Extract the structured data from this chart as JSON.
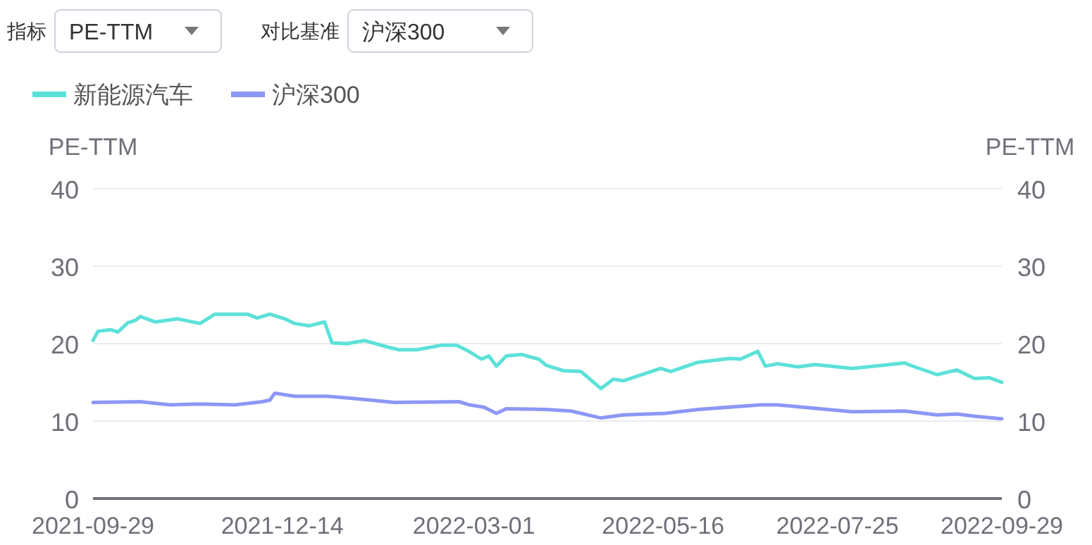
{
  "chart_data": {
    "type": "line",
    "ylabel": "PE-TTM",
    "y2label": "PE-TTM",
    "annotations": [
      "指标",
      "PE-TTM",
      "对比基准",
      "沪深300"
    ],
    "xlim": [
      "2021-09-29",
      "2022-09-29"
    ],
    "xticks": [
      "2021-09-29",
      "2021-12-14",
      "2022-03-01",
      "2022-05-16",
      "2022-07-25",
      "2022-09-29"
    ],
    "ylim": [
      0,
      40
    ],
    "yticks": [
      0,
      10,
      20,
      30,
      40
    ],
    "y2lim": [
      0,
      40
    ],
    "y2ticks": [
      0,
      10,
      20,
      30,
      40
    ],
    "grid": "y",
    "legend": "top left",
    "series": [
      {
        "name": "新能源汽车",
        "color": "#5ce1d9",
        "x": [
          "2021-09-29",
          "2021-10-01",
          "2021-10-06",
          "2021-10-09",
          "2021-10-13",
          "2021-10-16",
          "2021-10-18",
          "2021-10-24",
          "2021-11-02",
          "2021-11-11",
          "2021-11-17",
          "2021-11-30",
          "2021-12-04",
          "2021-12-09",
          "2021-12-15",
          "2021-12-19",
          "2021-12-25",
          "2021-12-31",
          "2022-01-03",
          "2022-01-09",
          "2022-01-16",
          "2022-01-26",
          "2022-01-30",
          "2022-02-06",
          "2022-02-16",
          "2022-02-22",
          "2022-02-27",
          "2022-03-04",
          "2022-03-07",
          "2022-03-10",
          "2022-03-14",
          "2022-03-20",
          "2022-03-27",
          "2022-03-30",
          "2022-04-06",
          "2022-04-13",
          "2022-04-21",
          "2022-04-26",
          "2022-04-30",
          "2022-05-15",
          "2022-05-19",
          "2022-05-30",
          "2022-06-12",
          "2022-06-16",
          "2022-06-23",
          "2022-06-26",
          "2022-07-01",
          "2022-07-09",
          "2022-07-16",
          "2022-07-31",
          "2022-08-21",
          "2022-08-25",
          "2022-09-03",
          "2022-09-11",
          "2022-09-18",
          "2022-09-24",
          "2022-09-29"
        ],
        "values": [
          20.4,
          21.6,
          21.8,
          21.5,
          22.7,
          23.0,
          23.5,
          22.8,
          23.2,
          22.6,
          23.8,
          23.8,
          23.3,
          23.8,
          23.2,
          22.6,
          22.3,
          22.8,
          20.1,
          20.0,
          20.4,
          19.5,
          19.2,
          19.2,
          19.8,
          19.8,
          19.0,
          18.0,
          18.4,
          17.1,
          18.4,
          18.6,
          18.0,
          17.2,
          16.5,
          16.4,
          14.2,
          15.4,
          15.2,
          16.8,
          16.4,
          17.6,
          18.1,
          18.0,
          19.0,
          17.1,
          17.4,
          17.0,
          17.3,
          16.8,
          17.5,
          17.0,
          16.0,
          16.6,
          15.5,
          15.6,
          15.0
        ]
      },
      {
        "name": "沪深300",
        "color": "#8c97f5",
        "x": [
          "2021-09-29",
          "2021-10-18",
          "2021-10-30",
          "2021-11-11",
          "2021-11-25",
          "2021-12-06",
          "2021-12-09",
          "2021-12-11",
          "2021-12-19",
          "2022-01-01",
          "2022-01-12",
          "2022-01-28",
          "2022-02-23",
          "2022-02-27",
          "2022-03-05",
          "2022-03-10",
          "2022-03-14",
          "2022-03-30",
          "2022-04-09",
          "2022-04-21",
          "2022-04-30",
          "2022-05-17",
          "2022-05-30",
          "2022-06-24",
          "2022-07-01",
          "2022-07-11",
          "2022-07-31",
          "2022-08-21",
          "2022-09-03",
          "2022-09-11",
          "2022-09-19",
          "2022-09-29"
        ],
        "values": [
          12.4,
          12.5,
          12.1,
          12.2,
          12.1,
          12.5,
          12.7,
          13.6,
          13.2,
          13.2,
          12.9,
          12.4,
          12.5,
          12.1,
          11.8,
          11.0,
          11.6,
          11.5,
          11.3,
          10.4,
          10.8,
          11.0,
          11.5,
          12.1,
          12.1,
          11.8,
          11.2,
          11.3,
          10.8,
          10.9,
          10.6,
          10.3
        ]
      }
    ]
  }
}
